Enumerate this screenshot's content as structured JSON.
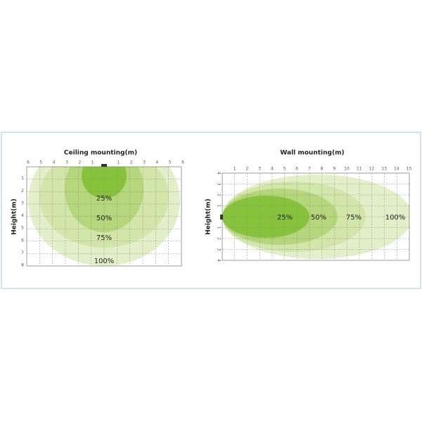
{
  "panels": [
    {
      "title": "Ceiling mounting(m)",
      "y_label": "Height(m)",
      "x_ticks_left": [
        "6",
        "5",
        "4",
        "3",
        "2",
        "1"
      ],
      "x_ticks_right": [
        "1",
        "2",
        "3",
        "4",
        "5",
        "6"
      ],
      "y_ticks": [
        "1",
        "2",
        "3",
        "4",
        "5",
        "6",
        "7",
        "8"
      ],
      "zones": [
        "25%",
        "50%",
        "75%",
        "100%"
      ]
    },
    {
      "title": "Wall mounting(m)",
      "y_label": "Height(m)",
      "x_ticks": [
        "1",
        "2",
        "3",
        "4",
        "5",
        "6",
        "7",
        "8",
        "9",
        "10",
        "11",
        "12",
        "13",
        "14",
        "15"
      ],
      "y_ticks_up": [
        "4",
        "3",
        "2",
        "1"
      ],
      "y_ticks_down": [
        "1",
        "2",
        "3",
        "4"
      ],
      "zones": [
        "25%",
        "50%",
        "75%",
        "100%"
      ]
    }
  ]
}
